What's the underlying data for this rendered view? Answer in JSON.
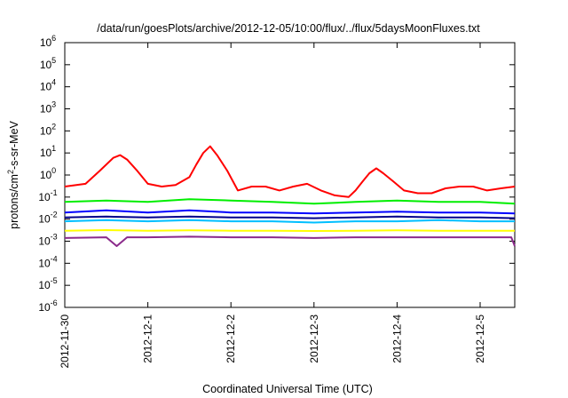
{
  "chart_data": {
    "type": "line",
    "title": "/data/run/goesPlots/archive/2012-12-05/10:00/flux/../flux/5daysMoonFluxes.txt",
    "xlabel": "Coordinated Universal Time (UTC)",
    "ylabel_parts": {
      "base": "protons/cm",
      "sup": "2",
      "rest": "-s-sr-MeV"
    },
    "y_scale": "log",
    "ylim": [
      1e-06,
      1000000.0
    ],
    "y_ticks": [
      {
        "value": 1e-06,
        "base": "10",
        "exp": "-6"
      },
      {
        "value": 1e-05,
        "base": "10",
        "exp": "-5"
      },
      {
        "value": 0.0001,
        "base": "10",
        "exp": "-4"
      },
      {
        "value": 0.001,
        "base": "10",
        "exp": "-3"
      },
      {
        "value": 0.01,
        "base": "10",
        "exp": "-2"
      },
      {
        "value": 0.1,
        "base": "10",
        "exp": "-1"
      },
      {
        "value": 1,
        "base": "10",
        "exp": "0"
      },
      {
        "value": 10,
        "base": "10",
        "exp": "1"
      },
      {
        "value": 100,
        "base": "10",
        "exp": "2"
      },
      {
        "value": 1000,
        "base": "10",
        "exp": "3"
      },
      {
        "value": 10000,
        "base": "10",
        "exp": "4"
      },
      {
        "value": 100000,
        "base": "10",
        "exp": "5"
      },
      {
        "value": 1000000,
        "base": "10",
        "exp": "6"
      }
    ],
    "xlim": [
      "2012-11-30T00:00",
      "2012-12-05T10:00"
    ],
    "x_ticks": [
      "2012-11-30",
      "2012-12-1",
      "2012-12-2",
      "2012-12-3",
      "2012-12-4",
      "2012-12-5"
    ],
    "x_tick_dates": [
      "2012-11-30T00:00",
      "2012-12-01T00:00",
      "2012-12-02T00:00",
      "2012-12-03T00:00",
      "2012-12-04T00:00",
      "2012-12-05T00:00"
    ],
    "grid": false,
    "legend": "none",
    "series": [
      {
        "color": "#ff0000",
        "x": [
          "2012-11-30T00:00",
          "2012-11-30T06:00",
          "2012-11-30T10:00",
          "2012-11-30T14:00",
          "2012-11-30T16:00",
          "2012-11-30T18:00",
          "2012-11-30T21:00",
          "2012-12-01T00:00",
          "2012-12-01T04:00",
          "2012-12-01T08:00",
          "2012-12-01T12:00",
          "2012-12-01T14:00",
          "2012-12-01T16:00",
          "2012-12-01T18:00",
          "2012-12-01T20:00",
          "2012-12-01T23:00",
          "2012-12-02T02:00",
          "2012-12-02T06:00",
          "2012-12-02T10:00",
          "2012-12-02T14:00",
          "2012-12-02T18:00",
          "2012-12-02T22:00",
          "2012-12-03T02:00",
          "2012-12-03T06:00",
          "2012-12-03T10:00",
          "2012-12-03T12:00",
          "2012-12-03T14:00",
          "2012-12-03T16:00",
          "2012-12-03T18:00",
          "2012-12-03T20:00",
          "2012-12-03T23:00",
          "2012-12-04T02:00",
          "2012-12-04T06:00",
          "2012-12-04T10:00",
          "2012-12-04T14:00",
          "2012-12-04T18:00",
          "2012-12-04T22:00",
          "2012-12-05T02:00",
          "2012-12-05T06:00",
          "2012-12-05T10:00"
        ],
        "y": [
          0.3,
          0.4,
          1.5,
          6,
          8,
          5,
          1.5,
          0.4,
          0.3,
          0.35,
          0.8,
          3,
          10,
          20,
          8,
          1.5,
          0.2,
          0.3,
          0.3,
          0.2,
          0.3,
          0.4,
          0.2,
          0.12,
          0.1,
          0.2,
          0.5,
          1.2,
          2,
          1.2,
          0.5,
          0.2,
          0.15,
          0.15,
          0.25,
          0.3,
          0.3,
          0.2,
          0.25,
          0.3
        ]
      },
      {
        "color": "#00ee00",
        "x": [
          "2012-11-30T00:00",
          "2012-11-30T12:00",
          "2012-12-01T00:00",
          "2012-12-01T12:00",
          "2012-12-02T00:00",
          "2012-12-02T12:00",
          "2012-12-03T00:00",
          "2012-12-03T12:00",
          "2012-12-04T00:00",
          "2012-12-04T12:00",
          "2012-12-05T00:00",
          "2012-12-05T10:00"
        ],
        "y": [
          0.06,
          0.07,
          0.06,
          0.08,
          0.07,
          0.06,
          0.05,
          0.06,
          0.07,
          0.06,
          0.06,
          0.05
        ]
      },
      {
        "color": "#00bfff",
        "x": [
          "2012-11-30T00:00",
          "2012-11-30T12:00",
          "2012-12-01T00:00",
          "2012-12-01T12:00",
          "2012-12-02T00:00",
          "2012-12-02T12:00",
          "2012-12-03T00:00",
          "2012-12-03T12:00",
          "2012-12-04T00:00",
          "2012-12-04T12:00",
          "2012-12-05T00:00",
          "2012-12-05T10:00"
        ],
        "y": [
          0.008,
          0.009,
          0.008,
          0.009,
          0.008,
          0.008,
          0.007,
          0.008,
          0.008,
          0.009,
          0.008,
          0.008
        ]
      },
      {
        "color": "#0000ff",
        "x": [
          "2012-11-30T00:00",
          "2012-11-30T12:00",
          "2012-12-01T00:00",
          "2012-12-01T12:00",
          "2012-12-02T00:00",
          "2012-12-02T12:00",
          "2012-12-03T00:00",
          "2012-12-03T12:00",
          "2012-12-04T00:00",
          "2012-12-04T12:00",
          "2012-12-05T00:00",
          "2012-12-05T10:00"
        ],
        "y": [
          0.02,
          0.025,
          0.02,
          0.025,
          0.02,
          0.02,
          0.018,
          0.02,
          0.022,
          0.02,
          0.02,
          0.018
        ]
      },
      {
        "color": "#00008b",
        "x": [
          "2012-11-30T00:00",
          "2012-11-30T12:00",
          "2012-12-01T00:00",
          "2012-12-01T12:00",
          "2012-12-02T00:00",
          "2012-12-02T12:00",
          "2012-12-03T00:00",
          "2012-12-03T12:00",
          "2012-12-04T00:00",
          "2012-12-04T12:00",
          "2012-12-05T00:00",
          "2012-12-05T10:00"
        ],
        "y": [
          0.012,
          0.013,
          0.012,
          0.013,
          0.012,
          0.012,
          0.011,
          0.012,
          0.013,
          0.012,
          0.012,
          0.011
        ]
      },
      {
        "color": "#ffff00",
        "x": [
          "2012-11-30T00:00",
          "2012-11-30T12:00",
          "2012-12-01T00:00",
          "2012-12-01T12:00",
          "2012-12-02T00:00",
          "2012-12-02T12:00",
          "2012-12-03T00:00",
          "2012-12-03T12:00",
          "2012-12-04T00:00",
          "2012-12-04T12:00",
          "2012-12-05T00:00",
          "2012-12-05T10:00"
        ],
        "y": [
          0.003,
          0.0032,
          0.003,
          0.0031,
          0.003,
          0.003,
          0.0029,
          0.003,
          0.0031,
          0.003,
          0.003,
          0.003
        ]
      },
      {
        "color": "#8b2a8b",
        "x": [
          "2012-11-30T00:00",
          "2012-11-30T12:00",
          "2012-11-30T15:00",
          "2012-11-30T18:00",
          "2012-12-01T00:00",
          "2012-12-01T12:00",
          "2012-12-02T00:00",
          "2012-12-02T12:00",
          "2012-12-03T00:00",
          "2012-12-03T12:00",
          "2012-12-04T00:00",
          "2012-12-04T12:00",
          "2012-12-05T00:00",
          "2012-12-05T09:00",
          "2012-12-05T10:00"
        ],
        "y": [
          0.0014,
          0.0015,
          0.0006,
          0.0015,
          0.0015,
          0.0016,
          0.0015,
          0.0015,
          0.0014,
          0.0015,
          0.0015,
          0.0015,
          0.0015,
          0.0015,
          0.0006
        ]
      }
    ]
  }
}
